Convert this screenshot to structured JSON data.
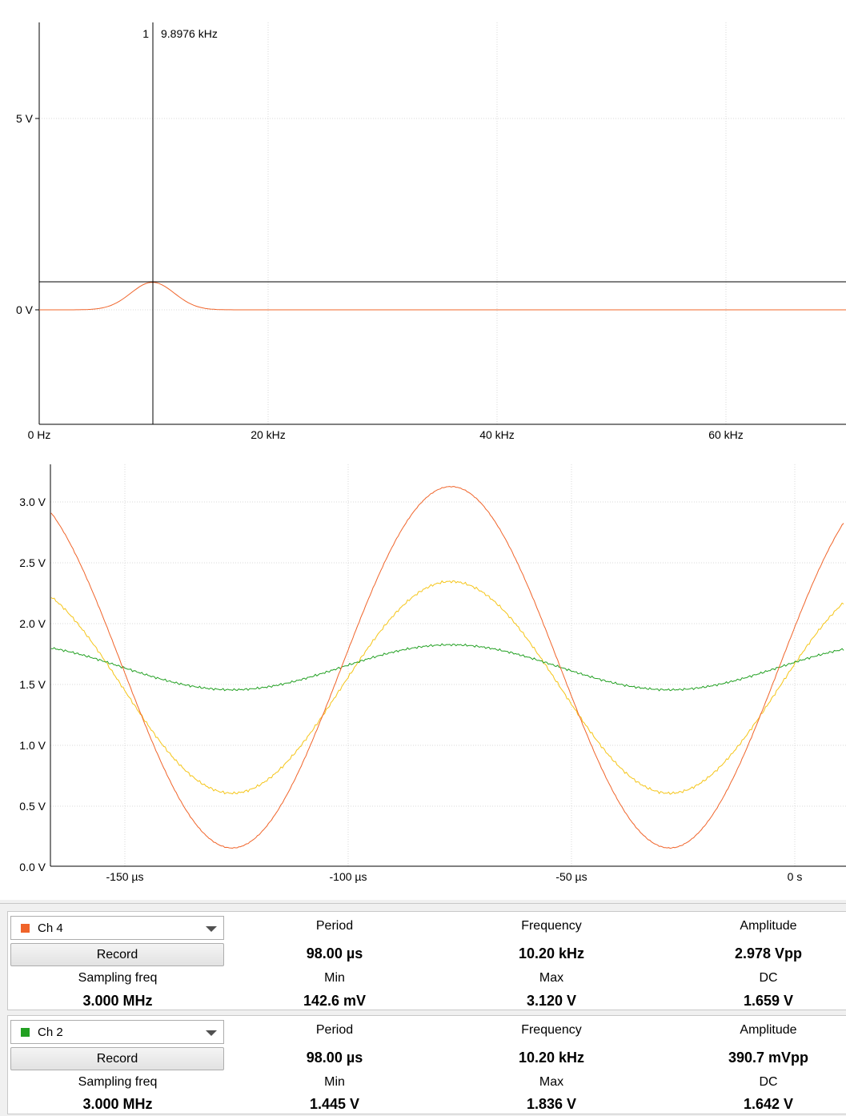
{
  "spectrum": {
    "y_ticks": [
      "5 V",
      "0 V"
    ],
    "x_ticks": [
      "0 Hz",
      "20 kHz",
      "40 kHz",
      "60 kHz"
    ],
    "cursor_index": "1",
    "cursor_label": "9.8976 kHz",
    "trace_color": "#f0642a"
  },
  "scope": {
    "y_ticks": [
      "3.0 V",
      "2.5 V",
      "2.0 V",
      "1.5 V",
      "1.0 V",
      "0.5 V",
      "0.0 V"
    ],
    "x_ticks": [
      "-150 µs",
      "-100 µs",
      "-50 µs",
      "0 s"
    ]
  },
  "chart_data": [
    {
      "type": "line",
      "xlabel": "",
      "ylabel": "",
      "x_range_khz": [
        0,
        71
      ],
      "series": [
        {
          "values": [
            [
              0,
              0
            ],
            [
              4,
              0
            ],
            [
              6,
              0.1
            ],
            [
              8,
              0.4
            ],
            [
              9.9,
              0.7
            ],
            [
              12,
              0.4
            ],
            [
              14,
              0.08
            ],
            [
              16,
              0
            ],
            [
              71,
              0
            ]
          ]
        }
      ],
      "cursor_khz": 9.8976,
      "grid": true
    },
    {
      "type": "line",
      "xlabel": "",
      "ylabel": "",
      "x_range_us": [
        -166.5,
        11
      ],
      "ylim": [
        0,
        3.3
      ],
      "series": [
        {
          "color": "#f0642a",
          "values": [
            [
              -166.5,
              2.85
            ],
            [
              -150,
              1.63
            ],
            [
              -126,
              0.15
            ],
            [
              -100,
              1.63
            ],
            [
              -77,
              3.12
            ],
            [
              -50,
              1.63
            ],
            [
              -27,
              0.15
            ],
            [
              0,
              1.68
            ],
            [
              11,
              2.7
            ]
          ]
        },
        {
          "color": "#f5c518",
          "values": [
            [
              -166.5,
              2.22
            ],
            [
              -150,
              1.54
            ],
            [
              -126,
              0.6
            ],
            [
              -100,
              1.46
            ],
            [
              -77,
              2.34
            ],
            [
              -50,
              1.55
            ],
            [
              -27,
              0.6
            ],
            [
              0,
              1.5
            ],
            [
              11,
              2.1
            ]
          ]
        },
        {
          "color": "#22a022",
          "values": [
            [
              -166.5,
              1.78
            ],
            [
              -150,
              1.64
            ],
            [
              -126,
              1.45
            ],
            [
              -100,
              1.66
            ],
            [
              -77,
              1.82
            ],
            [
              -50,
              1.63
            ],
            [
              -27,
              1.45
            ],
            [
              0,
              1.67
            ],
            [
              11,
              1.79
            ]
          ]
        }
      ],
      "grid": true
    }
  ],
  "channels": [
    {
      "name": "Ch 4",
      "color": "#f0642a",
      "record_label": "Record",
      "period_label": "Period",
      "period": "98.00 µs",
      "freq_label": "Frequency",
      "freq": "10.20 kHz",
      "amp_label": "Amplitude",
      "amp": "2.978 Vpp",
      "sfreq_label": "Sampling freq",
      "sfreq": "3.000 MHz",
      "min_label": "Min",
      "min": "142.6 mV",
      "max_label": "Max",
      "max": "3.120 V",
      "dc_label": "DC",
      "dc": "1.659 V"
    },
    {
      "name": "Ch 2",
      "color": "#22a022",
      "record_label": "Record",
      "period_label": "Period",
      "period": "98.00 µs",
      "freq_label": "Frequency",
      "freq": "10.20 kHz",
      "amp_label": "Amplitude",
      "amp": "390.7 mVpp",
      "sfreq_label": "Sampling freq",
      "sfreq": "3.000 MHz",
      "min_label": "Min",
      "min": "1.445 V",
      "max_label": "Max",
      "max": "1.836 V",
      "dc_label": "DC",
      "dc": "1.642 V"
    }
  ]
}
